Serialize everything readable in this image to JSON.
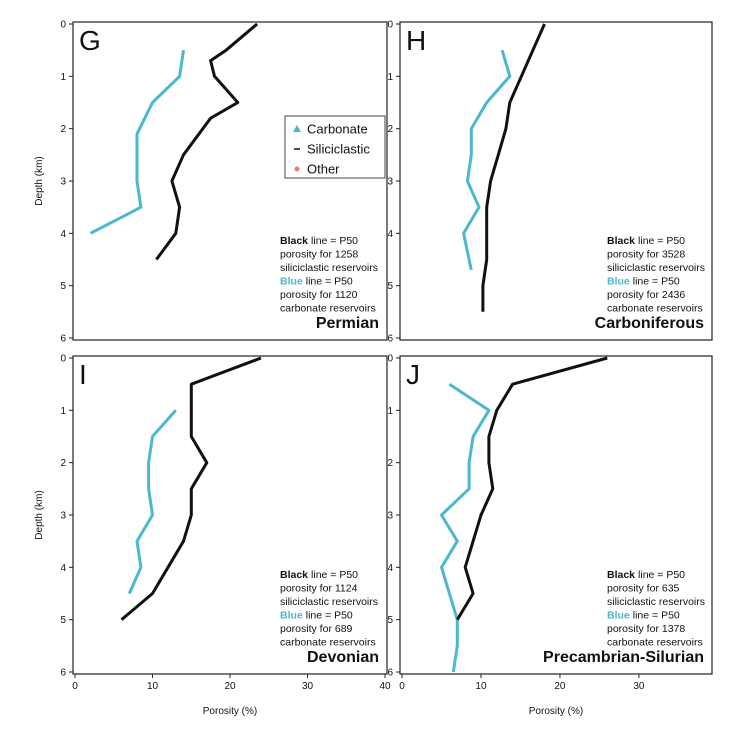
{
  "chart_data": [
    {
      "type": "line",
      "label": "G",
      "title": "Permian",
      "ylabel": "Depth (km)",
      "xlim": [
        0,
        40
      ],
      "ylim": [
        0,
        6
      ],
      "yticks": [
        0,
        1,
        2,
        3,
        4,
        5,
        6
      ],
      "legend": [
        {
          "name": "Carbonate",
          "color": "#4bb8d0",
          "marker": "triangle"
        },
        {
          "name": "Siliciclastic",
          "color": "#111111",
          "marker": "dash"
        },
        {
          "name": "Other",
          "color": "#f07f5a",
          "marker": "dot"
        }
      ],
      "annotation": [
        {
          "emph": "Black",
          "text": "line = P50"
        },
        "porosity for 1258",
        "siliciclastic reservoirs",
        {
          "emph": "Blue",
          "text": "line = P50",
          "color": "#4bb8d0"
        },
        "porosity for 1120",
        "carbonate reservoirs"
      ],
      "series": [
        {
          "color": "#4bb8d0",
          "porosity": [
            14,
            13.5,
            10,
            8,
            8,
            8.5,
            2
          ],
          "depth": [
            0.5,
            1,
            1.5,
            2.1,
            3,
            3.5,
            4
          ]
        },
        {
          "color": "#111111",
          "porosity": [
            23.5,
            19.5,
            17.5,
            18,
            21,
            17.5,
            14,
            12.5,
            13.5,
            13,
            10.5
          ],
          "depth": [
            0,
            0.5,
            0.7,
            1,
            1.5,
            1.8,
            2.5,
            3,
            3.5,
            4,
            4.5
          ]
        }
      ]
    },
    {
      "type": "line",
      "label": "H",
      "title": "Carboniferous",
      "xlim": [
        0,
        40
      ],
      "ylim": [
        0,
        6
      ],
      "yticks": [
        0,
        1,
        2,
        3,
        4,
        5,
        6
      ],
      "annotation": [
        {
          "emph": "Black",
          "text": "line = P50"
        },
        "porosity for 3528",
        "siliciclastic reservoirs",
        {
          "emph": "Blue",
          "text": "line = P50",
          "color": "#4bb8d0"
        },
        "porosity for 2436",
        "carbonate reservoirs"
      ],
      "series": [
        {
          "color": "#4bb8d0",
          "porosity": [
            13,
            14,
            11,
            9,
            9,
            8.5,
            10,
            8,
            9
          ],
          "depth": [
            0.5,
            1,
            1.5,
            2,
            2.5,
            3,
            3.5,
            4,
            4.7
          ]
        },
        {
          "color": "#111111",
          "porosity": [
            18.5,
            17,
            15.5,
            14,
            13.5,
            12.5,
            11.5,
            11,
            11,
            11,
            10.5,
            10.5
          ],
          "depth": [
            0,
            0.5,
            1,
            1.5,
            2,
            2.5,
            3,
            3.5,
            4,
            4.5,
            5,
            5.5
          ]
        }
      ]
    },
    {
      "type": "line",
      "label": "I",
      "title": "Devonian",
      "ylabel": "Depth (km)",
      "xlabel": "Porosity (%)",
      "xlim": [
        0,
        40
      ],
      "xticks": [
        0,
        10,
        20,
        30,
        40
      ],
      "ylim": [
        0,
        6
      ],
      "yticks": [
        0,
        1,
        2,
        3,
        4,
        5,
        6
      ],
      "annotation": [
        {
          "emph": "Black",
          "text": "line = P50"
        },
        "porosity for 1124",
        "siliciclastic reservoirs",
        {
          "emph": "Blue",
          "text": "line = P50",
          "color": "#4bb8d0"
        },
        "porosity for 689",
        "carbonate reservoirs"
      ],
      "series": [
        {
          "color": "#4bb8d0",
          "porosity": [
            13,
            10,
            9.5,
            9.5,
            10,
            8,
            8.5,
            7
          ],
          "depth": [
            1,
            1.5,
            2,
            2.5,
            3,
            3.5,
            4,
            4.5
          ]
        },
        {
          "color": "#111111",
          "porosity": [
            24,
            15,
            15,
            15,
            17,
            15,
            15,
            14,
            12,
            10,
            6
          ],
          "depth": [
            0,
            0.5,
            1,
            1.5,
            2,
            2.5,
            3,
            3.5,
            4,
            4.5,
            5
          ]
        }
      ]
    },
    {
      "type": "line",
      "label": "J",
      "title": "Precambrian-Silurian",
      "xlabel": "Porosity (%)",
      "xlim": [
        0,
        39
      ],
      "xticks": [
        0,
        10,
        20,
        30
      ],
      "ylim": [
        0,
        6
      ],
      "yticks": [
        0,
        1,
        2,
        3,
        4,
        5,
        6
      ],
      "annotation": [
        {
          "emph": "Black",
          "text": "line = P50"
        },
        "porosity for 635",
        "siliciclastic reservoirs",
        {
          "emph": "Blue",
          "text": "line = P50",
          "color": "#4bb8d0"
        },
        "porosity for 1378",
        "carbonate reservoirs"
      ],
      "series": [
        {
          "color": "#4bb8d0",
          "porosity": [
            6,
            11,
            9,
            8.5,
            8.5,
            5,
            7,
            5,
            6,
            7,
            7,
            6.5
          ],
          "depth": [
            0.5,
            1,
            1.5,
            2,
            2.5,
            3,
            3.5,
            4,
            4.5,
            5,
            5.5,
            6
          ]
        },
        {
          "color": "#111111",
          "porosity": [
            26,
            14,
            12,
            11,
            11,
            11.5,
            10,
            9,
            8,
            9,
            7
          ],
          "depth": [
            0,
            0.5,
            1,
            1.5,
            2,
            2.5,
            3,
            3.5,
            4,
            4.5,
            5
          ]
        }
      ]
    }
  ]
}
